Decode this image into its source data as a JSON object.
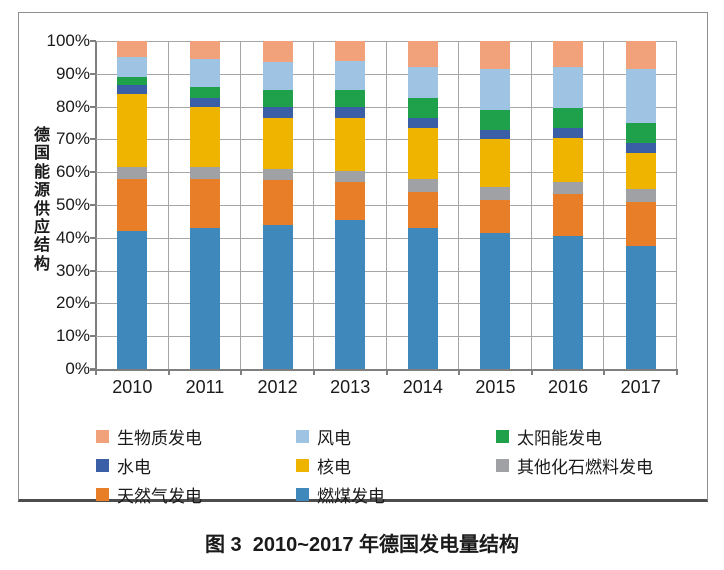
{
  "figure": {
    "y_axis_title": "德国能源供应结构",
    "caption": "图 3  2010~2017 年德国发电量结构"
  },
  "chart_data": {
    "type": "bar",
    "stacked": true,
    "title": "",
    "xlabel": "",
    "ylabel": "德国能源供应结构",
    "ylim": [
      0,
      100
    ],
    "ytick_step": 10,
    "ytick_suffix": "%",
    "grid": true,
    "legend_position": "bottom",
    "categories": [
      "2010",
      "2011",
      "2012",
      "2013",
      "2014",
      "2015",
      "2016",
      "2017"
    ],
    "series": [
      {
        "name": "燃煤发电",
        "color": "#3E88BC",
        "values": [
          42.0,
          43.0,
          44.0,
          45.5,
          43.0,
          41.5,
          40.5,
          37.5
        ]
      },
      {
        "name": "天然气发电",
        "color": "#E87E27",
        "values": [
          16.0,
          15.0,
          13.5,
          11.5,
          11.0,
          10.0,
          13.0,
          13.5
        ]
      },
      {
        "name": "其他化石燃料发电",
        "color": "#9FA1A4",
        "values": [
          3.5,
          3.5,
          3.5,
          3.5,
          4.0,
          4.0,
          3.5,
          4.0
        ]
      },
      {
        "name": "核电",
        "color": "#EFB400",
        "values": [
          22.5,
          18.5,
          15.5,
          16.0,
          15.5,
          14.5,
          13.5,
          11.0
        ]
      },
      {
        "name": "水电",
        "color": "#3A5FA6",
        "values": [
          2.5,
          2.5,
          3.5,
          3.5,
          3.0,
          3.0,
          3.0,
          3.0
        ]
      },
      {
        "name": "太阳能发电",
        "color": "#1FA04A",
        "values": [
          2.5,
          3.5,
          5.0,
          5.0,
          6.0,
          6.0,
          6.0,
          6.0
        ]
      },
      {
        "name": "风电",
        "color": "#9FC3E3",
        "values": [
          6.0,
          8.5,
          8.5,
          9.0,
          9.5,
          12.5,
          12.5,
          16.5
        ]
      },
      {
        "name": "生物质发电",
        "color": "#F1A27B",
        "values": [
          5.0,
          5.5,
          6.5,
          6.0,
          8.0,
          8.5,
          8.0,
          8.5
        ]
      }
    ]
  },
  "legend": {
    "items": [
      {
        "label": "生物质发电",
        "color": "#F1A27B"
      },
      {
        "label": "风电",
        "color": "#9FC3E3"
      },
      {
        "label": "太阳能发电",
        "color": "#1FA04A"
      },
      {
        "label": "水电",
        "color": "#3A5FA6"
      },
      {
        "label": "核电",
        "color": "#EFB400"
      },
      {
        "label": "其他化石燃料发电",
        "color": "#9FA1A4"
      },
      {
        "label": "天然气发电",
        "color": "#E87E27"
      },
      {
        "label": "燃煤发电",
        "color": "#3E88BC"
      }
    ]
  }
}
